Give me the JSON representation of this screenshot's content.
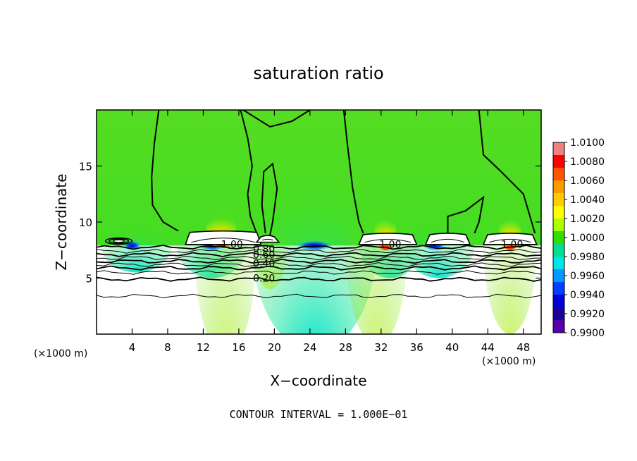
{
  "chart_data": {
    "type": "heatmap",
    "title": "saturation ratio",
    "xlabel": "X−coordinate",
    "ylabel": "Z−coordinate",
    "x_unit_label": "(×1000 m)",
    "x_unit_label_right": "(×1000 m)",
    "xlim": [
      0,
      50
    ],
    "ylim": [
      0,
      20
    ],
    "xticks": [
      4,
      8,
      12,
      16,
      20,
      24,
      28,
      32,
      36,
      40,
      44,
      48
    ],
    "yticks": [
      5,
      10,
      15
    ],
    "footer": "CONTOUR INTERVAL = 1.000E−01",
    "colorbar": {
      "labels": [
        "1.0100",
        "1.0080",
        "1.0060",
        "1.0040",
        "1.0020",
        "1.0000",
        "0.9980",
        "0.9960",
        "0.9940",
        "0.9920",
        "0.9900"
      ],
      "colors": [
        "#f08080",
        "#ff0000",
        "#ff5500",
        "#ff9900",
        "#ffcc00",
        "#ffff00",
        "#aaff00",
        "#33dd00",
        "#00e090",
        "#00e6e6",
        "#0099ff",
        "#0040ff",
        "#0000dd",
        "#1a0099",
        "#5500aa"
      ]
    },
    "contour_labels": [
      {
        "text": "1.00",
        "x": 14.0,
        "y": 7.7
      },
      {
        "text": "0.80",
        "x": 17.6,
        "y": 7.3
      },
      {
        "text": "0.60",
        "x": 17.6,
        "y": 6.8
      },
      {
        "text": "0.40",
        "x": 17.6,
        "y": 6.0
      },
      {
        "text": "0.20",
        "x": 17.6,
        "y": 4.7
      },
      {
        "text": "1.00",
        "x": 31.8,
        "y": 7.7
      },
      {
        "text": "1.00",
        "x": 45.5,
        "y": 7.7
      }
    ],
    "horizontal_contours": [
      {
        "level": 0.95,
        "y": 7.75,
        "weight": "heavy"
      },
      {
        "level": 0.9,
        "y": 7.4,
        "weight": "light"
      },
      {
        "level": 0.8,
        "y": 7.1,
        "weight": "heavy"
      },
      {
        "level": 0.7,
        "y": 6.8,
        "weight": "light"
      },
      {
        "level": 0.6,
        "y": 6.5,
        "weight": "heavy"
      },
      {
        "level": 0.5,
        "y": 6.2,
        "weight": "light"
      },
      {
        "level": 0.4,
        "y": 5.9,
        "weight": "heavy"
      },
      {
        "level": 0.3,
        "y": 5.5,
        "weight": "light"
      },
      {
        "level": 0.2,
        "y": 4.9,
        "weight": "heavy"
      },
      {
        "level": 0.1,
        "y": 3.4,
        "weight": "light"
      }
    ],
    "cloud_layers": [
      {
        "x0": 10.0,
        "x1": 18.5,
        "ybase": 8.0,
        "ytop": 9.2
      },
      {
        "x0": 18.0,
        "x1": 20.5,
        "ybase": 8.2,
        "ytop": 8.8
      },
      {
        "x0": 29.5,
        "x1": 36.0,
        "ybase": 8.0,
        "ytop": 9.0
      },
      {
        "x0": 37.0,
        "x1": 42.0,
        "ybase": 8.0,
        "ytop": 9.0
      },
      {
        "x0": 43.5,
        "x1": 49.5,
        "ybase": 8.0,
        "ytop": 9.0
      }
    ],
    "supersaturation_peaks": [
      {
        "x": 14.0,
        "y": 9.2,
        "w": 3.5
      },
      {
        "x": 32.5,
        "y": 9.0,
        "w": 2.5
      },
      {
        "x": 46.5,
        "y": 9.0,
        "w": 2.5
      }
    ],
    "subsaturation_dips": [
      {
        "x": 24.5,
        "y": 7.9,
        "w": 4.0
      },
      {
        "x": 13.0,
        "y": 7.9,
        "w": 3.0
      },
      {
        "x": 38.0,
        "y": 7.9,
        "w": 2.5
      },
      {
        "x": 4.0,
        "y": 7.9,
        "w": 2.0
      }
    ]
  }
}
